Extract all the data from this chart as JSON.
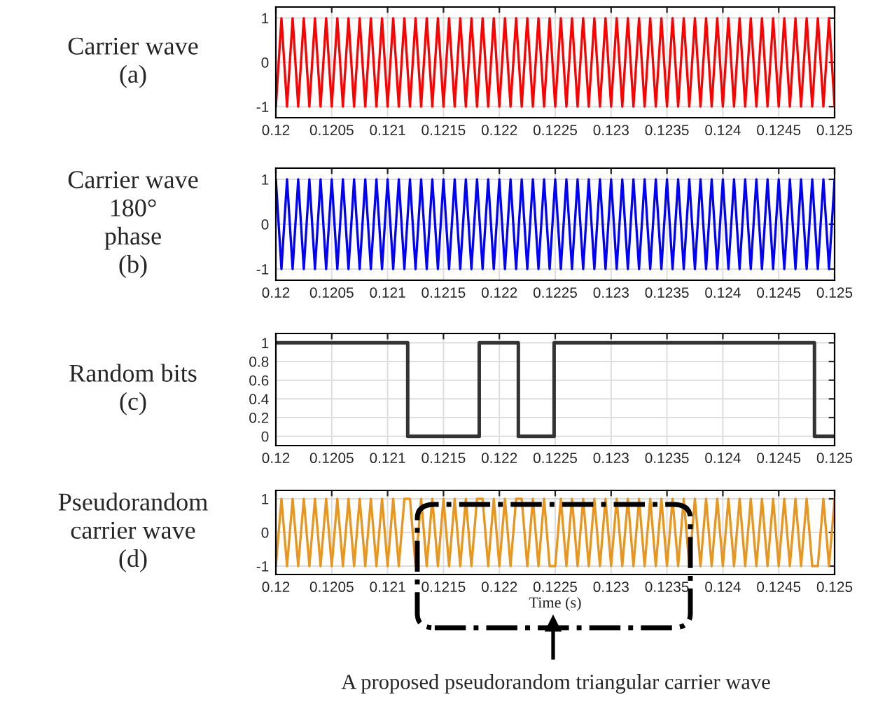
{
  "chart_data": [
    {
      "type": "line",
      "ylabel": "Carrier wave\n(a)",
      "x": [
        0.12,
        0.12005,
        0.1201,
        0.12015,
        0.1202,
        0.12025,
        0.1203,
        0.12035,
        0.1204,
        0.12045,
        0.1205,
        0.12055,
        0.1206,
        0.12065,
        0.1207,
        0.12075,
        0.1208,
        0.12085,
        0.1209,
        0.12095,
        0.121,
        0.12105,
        0.1211,
        0.12115,
        0.1212,
        0.12125,
        0.1213,
        0.12135,
        0.1214,
        0.12145,
        0.1215,
        0.12155,
        0.1216,
        0.12165,
        0.1217,
        0.12175,
        0.1218,
        0.12185,
        0.1219,
        0.12195,
        0.122,
        0.12205,
        0.1221,
        0.12215,
        0.1222,
        0.12225,
        0.1223,
        0.12235,
        0.1224,
        0.12245,
        0.1225,
        0.12255,
        0.1226,
        0.12265,
        0.1227,
        0.12275,
        0.1228,
        0.12285,
        0.1229,
        0.12295,
        0.123,
        0.12305,
        0.1231,
        0.12315,
        0.1232,
        0.12325,
        0.1233,
        0.12335,
        0.1234,
        0.12345,
        0.1235,
        0.12355,
        0.1236,
        0.12365,
        0.1237,
        0.12375,
        0.1238,
        0.12385,
        0.1239,
        0.12395,
        0.124,
        0.12405,
        0.1241,
        0.12415,
        0.1242,
        0.12425,
        0.1243,
        0.12435,
        0.1244,
        0.12445,
        0.1245,
        0.12455,
        0.1246,
        0.12465,
        0.1247,
        0.12475,
        0.1248,
        0.12485,
        0.1249,
        0.12495,
        0.125
      ],
      "series": [
        {
          "color": "#ff0000",
          "values": [
            -1,
            1,
            -1,
            1,
            -1,
            1,
            -1,
            1,
            -1,
            1,
            -1,
            1,
            -1,
            1,
            -1,
            1,
            -1,
            1,
            -1,
            1,
            -1,
            1,
            -1,
            1,
            -1,
            1,
            -1,
            1,
            -1,
            1,
            -1,
            1,
            -1,
            1,
            -1,
            1,
            -1,
            1,
            -1,
            1,
            -1,
            1,
            -1,
            1,
            -1,
            1,
            -1,
            1,
            -1,
            1,
            -1,
            1,
            -1,
            1,
            -1,
            1,
            -1,
            1,
            -1,
            1,
            -1,
            1,
            -1,
            1,
            -1,
            1,
            -1,
            1,
            -1,
            1,
            -1,
            1,
            -1,
            1,
            -1,
            1,
            -1,
            1,
            -1,
            1,
            -1,
            1,
            -1,
            1,
            -1,
            1,
            -1,
            1,
            -1,
            1,
            -1,
            1,
            -1,
            1,
            -1,
            1,
            -1,
            1,
            -1,
            1,
            -1
          ]
        }
      ],
      "xlim": [
        0.12,
        0.125
      ],
      "xticks": [
        0.12,
        0.1205,
        0.121,
        0.1215,
        0.122,
        0.1225,
        0.123,
        0.1235,
        0.124,
        0.1245,
        0.125
      ],
      "ylim": [
        -1.25,
        1.25
      ],
      "yticks": [
        -1,
        0,
        1
      ],
      "grid": true
    },
    {
      "type": "line",
      "ylabel": "Carrier wave\n180°\nphase\n(b)",
      "x": [
        0.12,
        0.12005,
        0.1201,
        0.12015,
        0.1202,
        0.12025,
        0.1203,
        0.12035,
        0.1204,
        0.12045,
        0.1205,
        0.12055,
        0.1206,
        0.12065,
        0.1207,
        0.12075,
        0.1208,
        0.12085,
        0.1209,
        0.12095,
        0.121,
        0.12105,
        0.1211,
        0.12115,
        0.1212,
        0.12125,
        0.1213,
        0.12135,
        0.1214,
        0.12145,
        0.1215,
        0.12155,
        0.1216,
        0.12165,
        0.1217,
        0.12175,
        0.1218,
        0.12185,
        0.1219,
        0.12195,
        0.122,
        0.12205,
        0.1221,
        0.12215,
        0.1222,
        0.12225,
        0.1223,
        0.12235,
        0.1224,
        0.12245,
        0.1225,
        0.12255,
        0.1226,
        0.12265,
        0.1227,
        0.12275,
        0.1228,
        0.12285,
        0.1229,
        0.12295,
        0.123,
        0.12305,
        0.1231,
        0.12315,
        0.1232,
        0.12325,
        0.1233,
        0.12335,
        0.1234,
        0.12345,
        0.1235,
        0.12355,
        0.1236,
        0.12365,
        0.1237,
        0.12375,
        0.1238,
        0.12385,
        0.1239,
        0.12395,
        0.124,
        0.12405,
        0.1241,
        0.12415,
        0.1242,
        0.12425,
        0.1243,
        0.12435,
        0.1244,
        0.12445,
        0.1245,
        0.12455,
        0.1246,
        0.12465,
        0.1247,
        0.12475,
        0.1248,
        0.12485,
        0.1249,
        0.12495,
        0.125
      ],
      "series": [
        {
          "color": "#0000ff",
          "values": [
            1,
            -1,
            1,
            -1,
            1,
            -1,
            1,
            -1,
            1,
            -1,
            1,
            -1,
            1,
            -1,
            1,
            -1,
            1,
            -1,
            1,
            -1,
            1,
            -1,
            1,
            -1,
            1,
            -1,
            1,
            -1,
            1,
            -1,
            1,
            -1,
            1,
            -1,
            1,
            -1,
            1,
            -1,
            1,
            -1,
            1,
            -1,
            1,
            -1,
            1,
            -1,
            1,
            -1,
            1,
            -1,
            1,
            -1,
            1,
            -1,
            1,
            -1,
            1,
            -1,
            1,
            -1,
            1,
            -1,
            1,
            -1,
            1,
            -1,
            1,
            -1,
            1,
            -1,
            1,
            -1,
            1,
            -1,
            1,
            -1,
            1,
            -1,
            1,
            -1,
            1,
            -1,
            1,
            -1,
            1,
            -1,
            1,
            -1,
            1,
            -1,
            1,
            -1,
            1,
            -1,
            1,
            -1,
            1,
            -1,
            1,
            -1,
            1
          ]
        }
      ],
      "xlim": [
        0.12,
        0.125
      ],
      "xticks": [
        0.12,
        0.1205,
        0.121,
        0.1215,
        0.122,
        0.1225,
        0.123,
        0.1235,
        0.124,
        0.1245,
        0.125
      ],
      "ylim": [
        -1.25,
        1.25
      ],
      "yticks": [
        -1,
        0,
        1
      ],
      "grid": true
    },
    {
      "type": "step",
      "ylabel": "Random bits\n(c)",
      "x": [
        0.12,
        0.12118,
        0.12182,
        0.12217,
        0.12249,
        0.12482,
        0.125
      ],
      "series": [
        {
          "color": "#333333",
          "values": [
            1,
            0,
            1,
            0,
            1,
            0,
            0
          ]
        }
      ],
      "xlim": [
        0.12,
        0.125
      ],
      "xticks": [
        0.12,
        0.1205,
        0.121,
        0.1215,
        0.122,
        0.1225,
        0.123,
        0.1235,
        0.124,
        0.1245,
        0.125
      ],
      "ylim": [
        -0.1,
        1.1
      ],
      "yticks": [
        0,
        0.2,
        0.4,
        0.6,
        0.8,
        1
      ],
      "grid": true
    },
    {
      "type": "line",
      "ylabel": "Pseudorandom\ncarrier wave\n(d)",
      "xlabel": "Time (s)",
      "annotations": [
        "A proposed pseudorandom triangular carrier wave"
      ],
      "x": [
        0.12,
        0.12005,
        0.1201,
        0.12015,
        0.1202,
        0.12025,
        0.1203,
        0.12035,
        0.1204,
        0.12045,
        0.1205,
        0.12055,
        0.1206,
        0.12065,
        0.1207,
        0.12075,
        0.1208,
        0.12085,
        0.1209,
        0.12095,
        0.121,
        0.12105,
        0.1211,
        0.12115,
        0.1212,
        0.12125,
        0.1213,
        0.12135,
        0.1214,
        0.12145,
        0.1215,
        0.12155,
        0.1216,
        0.12165,
        0.1217,
        0.12175,
        0.1218,
        0.12185,
        0.1219,
        0.12195,
        0.122,
        0.12205,
        0.1221,
        0.12215,
        0.1222,
        0.12225,
        0.1223,
        0.12235,
        0.1224,
        0.12245,
        0.1225,
        0.12255,
        0.1226,
        0.12265,
        0.1227,
        0.12275,
        0.1228,
        0.12285,
        0.1229,
        0.12295,
        0.123,
        0.12305,
        0.1231,
        0.12315,
        0.1232,
        0.12325,
        0.1233,
        0.12335,
        0.1234,
        0.12345,
        0.1235,
        0.12355,
        0.1236,
        0.12365,
        0.1237,
        0.12375,
        0.1238,
        0.12385,
        0.1239,
        0.12395,
        0.124,
        0.12405,
        0.1241,
        0.12415,
        0.1242,
        0.12425,
        0.1243,
        0.12435,
        0.1244,
        0.12445,
        0.1245,
        0.12455,
        0.1246,
        0.12465,
        0.1247,
        0.12475,
        0.1248,
        0.12485,
        0.1249,
        0.12495,
        0.125
      ],
      "series": [
        {
          "color": "#e8961e",
          "values": [
            -1,
            1,
            -1,
            1,
            -1,
            1,
            -1,
            1,
            -1,
            1,
            -1,
            1,
            -1,
            1,
            -1,
            1,
            -1,
            1,
            -1,
            1,
            -1,
            1,
            -1,
            1,
            1,
            -1,
            1,
            -1,
            1,
            -1,
            1,
            -1,
            1,
            -1,
            1,
            -1,
            1,
            1,
            -1,
            1,
            -1,
            1,
            -1,
            1,
            1,
            -1,
            1,
            -1,
            1,
            -1,
            -1,
            1,
            -1,
            1,
            -1,
            1,
            -1,
            1,
            -1,
            1,
            -1,
            1,
            -1,
            1,
            -1,
            1,
            -1,
            1,
            -1,
            1,
            -1,
            1,
            -1,
            1,
            -1,
            1,
            -1,
            1,
            -1,
            1,
            -1,
            1,
            -1,
            1,
            -1,
            1,
            -1,
            1,
            -1,
            1,
            -1,
            1,
            -1,
            1,
            -1,
            1,
            -1,
            -1,
            1,
            -1,
            1
          ]
        }
      ],
      "xlim": [
        0.12,
        0.125
      ],
      "xticks": [
        0.12,
        0.1205,
        0.121,
        0.1215,
        0.122,
        0.1225,
        0.123,
        0.1235,
        0.124,
        0.1245,
        0.125
      ],
      "ylim": [
        -1.25,
        1.25
      ],
      "yticks": [
        -1,
        0,
        1
      ],
      "grid": true
    }
  ]
}
